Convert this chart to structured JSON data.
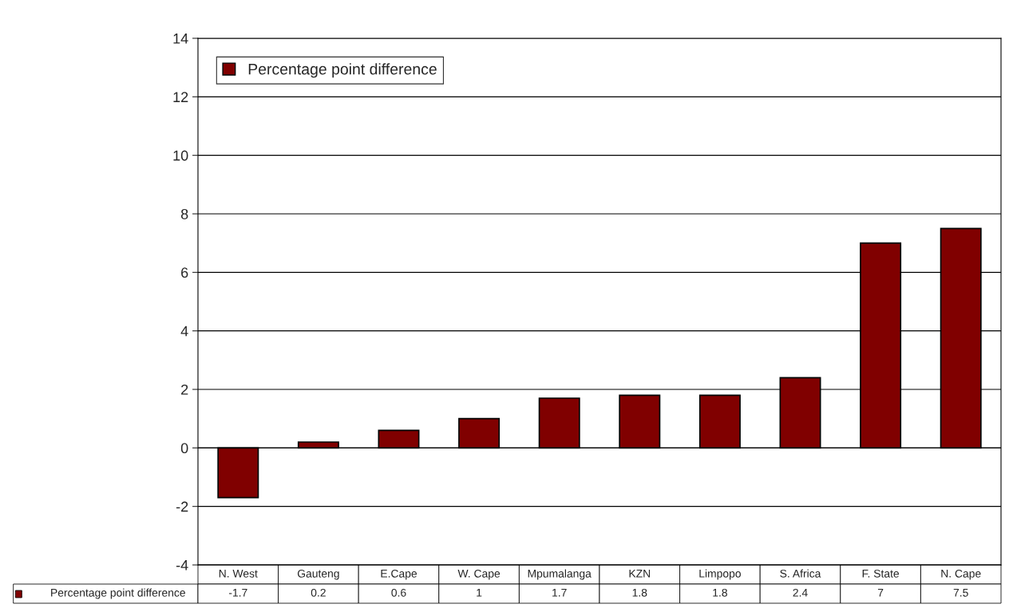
{
  "chart_data": {
    "type": "bar",
    "categories": [
      "N. West",
      "Gauteng",
      "E.Cape",
      "W. Cape",
      "Mpumalanga",
      "KZN",
      "Limpopo",
      "S. Africa",
      "F. State",
      "N. Cape"
    ],
    "series": [
      {
        "name": "Percentage point difference",
        "color": "#800000",
        "values": [
          -1.7,
          0.2,
          0.6,
          1,
          1.7,
          1.8,
          1.8,
          2.4,
          7,
          7.5
        ]
      }
    ],
    "ylim": [
      -4,
      14
    ],
    "yticks": [
      -4,
      -2,
      0,
      2,
      4,
      6,
      8,
      10,
      12,
      14
    ],
    "grid": "y",
    "legend": "top left",
    "data_labels": true
  }
}
